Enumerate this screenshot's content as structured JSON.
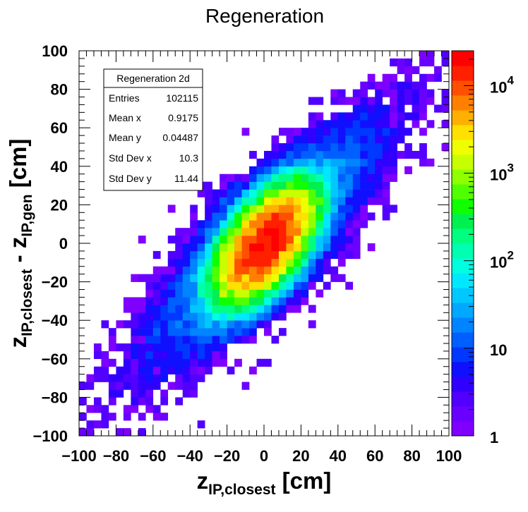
{
  "title": "Regeneration",
  "stats_box": {
    "name": "Regeneration 2d",
    "rows": [
      {
        "label": "Entries",
        "value": "102115"
      },
      {
        "label": "Mean x",
        "value": "0.9175"
      },
      {
        "label": "Mean y",
        "value": "0.04487"
      },
      {
        "label": "Std Dev x",
        "value": "10.3"
      },
      {
        "label": "Std Dev y",
        "value": "11.44"
      }
    ]
  },
  "axes": {
    "x": {
      "main": "z",
      "sub": "IP,closest",
      "unit": " [cm]"
    },
    "y": {
      "main1": "z",
      "sub1": "IP,closest",
      "minus": " - ",
      "main2": "z",
      "sub2": "IP,gen",
      "unit": " [cm]"
    }
  },
  "chart_data": {
    "type": "heatmap",
    "title": "Regeneration",
    "xlim": [
      -100,
      100
    ],
    "ylim": [
      -100,
      100
    ],
    "x_ticks": [
      "−100",
      "−80",
      "−60",
      "−40",
      "−20",
      "0",
      "20",
      "40",
      "60",
      "80",
      "100"
    ],
    "y_ticks": [
      "−100",
      "−80",
      "−60",
      "−40",
      "−20",
      "0",
      "20",
      "40",
      "60",
      "80",
      "100"
    ],
    "bins_x": 50,
    "bins_y": 50,
    "z_scale": "log",
    "z_range": [
      1,
      25000
    ],
    "colorbar_ticks": [
      {
        "value": 1,
        "label": "1"
      },
      {
        "value": 10,
        "label": "10"
      },
      {
        "value": 100,
        "label": "10",
        "exp": "2"
      },
      {
        "value": 1000,
        "label": "10",
        "exp": "3"
      },
      {
        "value": 10000,
        "label": "10",
        "exp": "4"
      }
    ],
    "distribution": {
      "peak_bin_content": 20000,
      "center": [
        0.9175,
        0.04487
      ],
      "std_x": 10.3,
      "std_y": 11.44,
      "core_correlation": 0.6,
      "correlated_band_slope": 1.0,
      "correlated_band_width": 14,
      "min_bin_content": 1
    },
    "palette": [
      "#7f00ff",
      "#6a00ff",
      "#5100ff",
      "#3000ff",
      "#1010ff",
      "#0038ff",
      "#0060ff",
      "#0084ff",
      "#00a8ff",
      "#00c8ff",
      "#00e8ff",
      "#00ffe0",
      "#00ffb0",
      "#00ff80",
      "#00f050",
      "#10ff00",
      "#50ff00",
      "#90ff00",
      "#c8ff00",
      "#f0ff00",
      "#ffe000",
      "#ffb000",
      "#ff8000",
      "#ff5000",
      "#ff2000",
      "#ff0000"
    ]
  }
}
